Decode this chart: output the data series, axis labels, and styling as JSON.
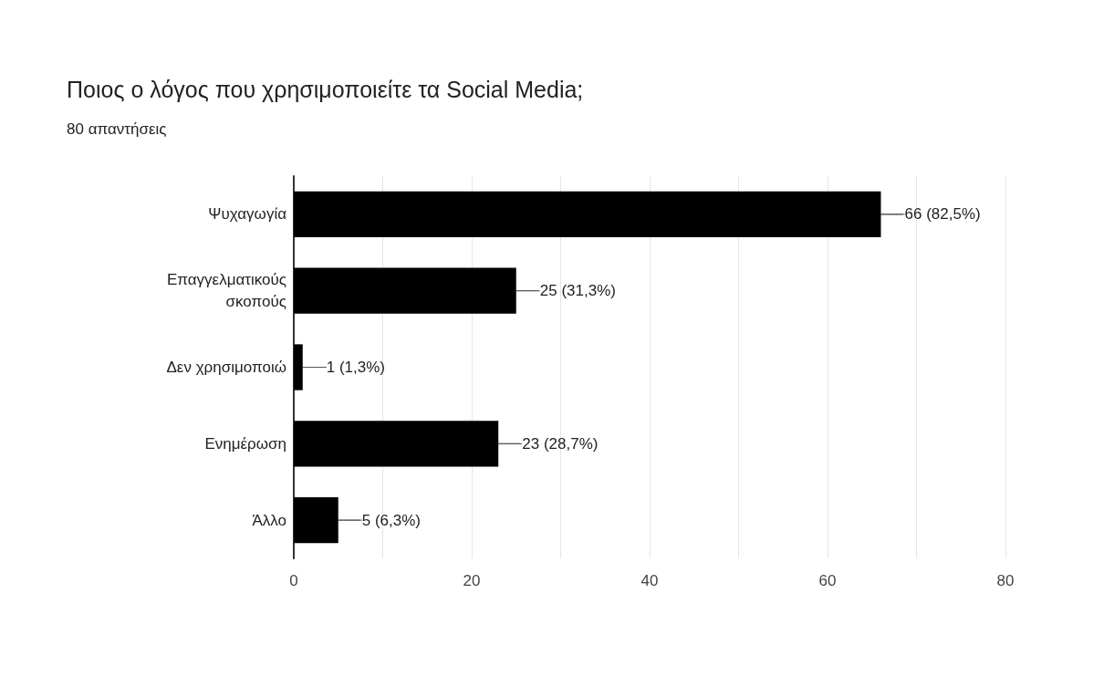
{
  "chart_data": {
    "type": "bar",
    "orientation": "horizontal",
    "title": "Ποιος ο λόγος που χρησιμοποιείτε τα Social Media;",
    "subtitle": "80 απαντήσεις",
    "categories": [
      "Ψυχαγωγία",
      "Επαγγελματικούς σκοπούς",
      "Δεν χρησιμοποιώ",
      "Ενημέρωση",
      "Άλλο"
    ],
    "values": [
      66,
      25,
      1,
      23,
      5
    ],
    "value_labels": [
      "66 (82,5%)",
      "25 (31,3%)",
      "1 (1,3%)",
      "23 (28,7%)",
      "5 (6,3%)"
    ],
    "color": "#000000",
    "xlim": [
      0,
      80
    ],
    "xticks": [
      0,
      {
        "value": 10,
        "label": null
      },
      20,
      {
        "value": 30,
        "label": null
      },
      40,
      {
        "value": 50,
        "label": null
      },
      60,
      {
        "value": 70,
        "label": null
      },
      80
    ],
    "grid": "x"
  }
}
